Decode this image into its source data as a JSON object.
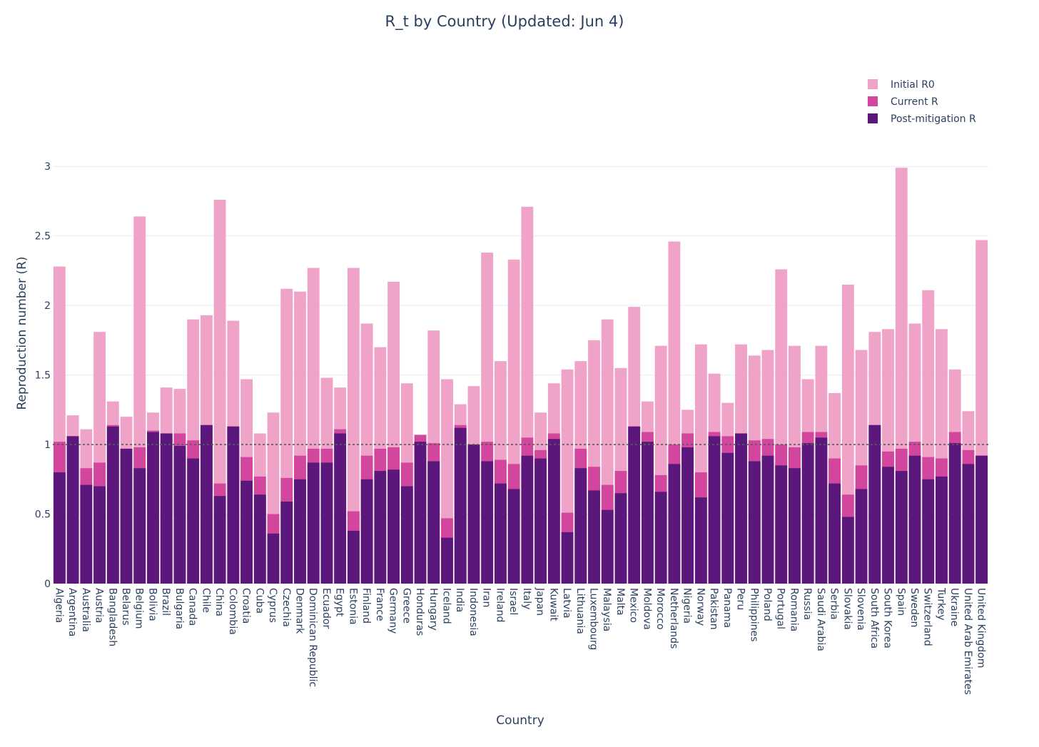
{
  "chart_data": {
    "type": "bar",
    "barmode": "overlay",
    "title": "R_t by Country (Updated: Jun 4)",
    "xlabel": "Country",
    "ylabel": "Reproduction number (R)",
    "ylim": [
      0,
      3.35
    ],
    "yticks": [
      0,
      0.5,
      1,
      1.5,
      2,
      2.5,
      3
    ],
    "ytick_labels": [
      "0",
      "0.5",
      "1",
      "1.5",
      "2",
      "2.5",
      "3"
    ],
    "grid": true,
    "reference_line": {
      "y": 1,
      "style": "dotted"
    },
    "legend_position": "top-right",
    "categories": [
      "Algeria",
      "Argentina",
      "Australia",
      "Austria",
      "Bangladesh",
      "Belarus",
      "Belgium",
      "Bolivia",
      "Brazil",
      "Bulgaria",
      "Canada",
      "Chile",
      "China",
      "Colombia",
      "Croatia",
      "Cuba",
      "Cyprus",
      "Czechia",
      "Denmark",
      "Dominican Republic",
      "Ecuador",
      "Egypt",
      "Estonia",
      "Finland",
      "France",
      "Germany",
      "Greece",
      "Honduras",
      "Hungary",
      "Iceland",
      "India",
      "Indonesia",
      "Iran",
      "Ireland",
      "Israel",
      "Italy",
      "Japan",
      "Kuwait",
      "Latvia",
      "Lithuania",
      "Luxembourg",
      "Malaysia",
      "Malta",
      "Mexico",
      "Moldova",
      "Morocco",
      "Netherlands",
      "Nigeria",
      "Norway",
      "Pakistan",
      "Panama",
      "Peru",
      "Philippines",
      "Poland",
      "Portugal",
      "Romania",
      "Russia",
      "Saudi Arabia",
      "Serbia",
      "Slovakia",
      "Slovenia",
      "South Africa",
      "South Korea",
      "Spain",
      "Sweden",
      "Switzerland",
      "Turkey",
      "Ukraine",
      "United Arab Emirates",
      "United Kingdom"
    ],
    "series": [
      {
        "name": "Initial R0",
        "color": "#f0a3c8",
        "values": [
          2.28,
          1.21,
          1.11,
          1.81,
          1.31,
          1.2,
          2.64,
          1.23,
          1.41,
          1.4,
          1.9,
          1.93,
          2.76,
          1.89,
          1.47,
          1.08,
          1.23,
          2.12,
          2.1,
          2.27,
          1.48,
          1.41,
          2.27,
          1.87,
          1.7,
          2.17,
          1.44,
          1.07,
          1.82,
          1.47,
          1.29,
          1.42,
          2.38,
          1.6,
          2.33,
          2.71,
          1.23,
          1.44,
          1.54,
          1.6,
          1.75,
          1.9,
          1.55,
          1.99,
          1.31,
          1.71,
          2.46,
          1.25,
          1.72,
          1.51,
          1.3,
          1.72,
          1.64,
          1.68,
          2.26,
          1.71,
          1.47,
          1.71,
          1.37,
          2.15,
          1.68,
          1.81,
          1.83,
          2.99,
          1.87,
          2.11,
          1.83,
          1.54,
          1.24,
          2.47
        ]
      },
      {
        "name": "Current R",
        "color": "#d3469e",
        "values": [
          1.02,
          1.06,
          0.83,
          0.87,
          1.14,
          0.97,
          0.98,
          1.1,
          1.08,
          1.08,
          1.03,
          1.14,
          0.72,
          1.13,
          0.91,
          0.77,
          0.5,
          0.76,
          0.92,
          0.97,
          0.97,
          1.11,
          0.52,
          0.92,
          0.97,
          0.98,
          0.87,
          1.07,
          1.01,
          0.47,
          1.14,
          1.0,
          1.02,
          0.89,
          0.86,
          1.05,
          0.96,
          1.08,
          0.51,
          0.97,
          0.84,
          0.71,
          0.81,
          1.13,
          1.09,
          0.78,
          1.0,
          1.08,
          0.8,
          1.09,
          1.06,
          1.08,
          1.03,
          1.04,
          1.0,
          0.98,
          1.09,
          1.09,
          0.9,
          0.64,
          0.85,
          1.14,
          0.95,
          0.97,
          1.02,
          0.91,
          0.9,
          1.09,
          0.96,
          0.92
        ]
      },
      {
        "name": "Post-mitigation R",
        "color": "#5c177d",
        "values": [
          0.8,
          1.06,
          0.71,
          0.7,
          1.13,
          0.97,
          0.83,
          1.09,
          1.08,
          0.99,
          0.9,
          1.14,
          0.63,
          1.13,
          0.74,
          0.64,
          0.36,
          0.59,
          0.75,
          0.87,
          0.87,
          1.08,
          0.38,
          0.75,
          0.81,
          0.82,
          0.7,
          1.02,
          0.88,
          0.33,
          1.12,
          1.0,
          0.88,
          0.72,
          0.68,
          0.92,
          0.9,
          1.04,
          0.37,
          0.83,
          0.67,
          0.53,
          0.65,
          1.13,
          1.02,
          0.66,
          0.86,
          0.98,
          0.62,
          1.06,
          0.94,
          1.08,
          0.88,
          0.92,
          0.85,
          0.83,
          1.01,
          1.05,
          0.72,
          0.48,
          0.68,
          1.14,
          0.84,
          0.81,
          0.92,
          0.75,
          0.77,
          1.01,
          0.86,
          0.92
        ]
      }
    ]
  }
}
